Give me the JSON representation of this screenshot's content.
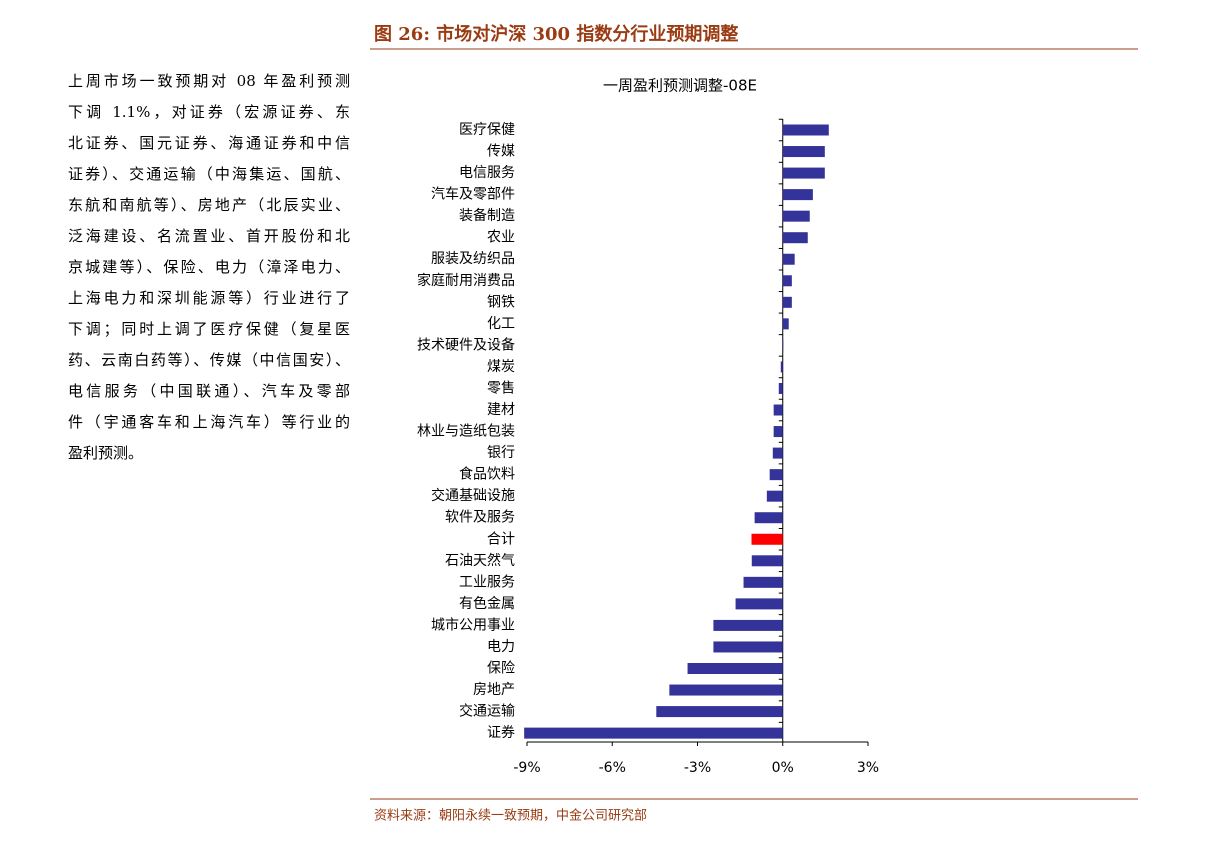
{
  "figure_title": "图 26:  市场对沪深 300 指数分行业预期调整",
  "paragraph": [
    "上周市场一致预期对 08 年盈利预测",
    "下调 1.1%，对证券（宏源证券、东",
    "北证券、国元证券、海通证券和中信",
    "证券）、交通运输（中海集运、国航、",
    "东航和南航等）、房地产（北辰实业、",
    "泛海建设、名流置业、首开股份和北",
    "京城建等）、保险、电力（漳泽电力、",
    "上海电力和深圳能源等）行业进行了",
    "下调；同时上调了医疗保健（复星医",
    "药、云南白药等）、传媒（中信国安）、",
    "电信服务（中国联通）、汽车及零部",
    "件（宇通客车和上海汽车）等行业的",
    "盈利预测。"
  ],
  "chart_data": {
    "type": "hbar",
    "title": "一周盈利预测调整-08E",
    "categories": [
      "医疗保健",
      "传媒",
      "电信服务",
      "汽车及零部件",
      "装备制造",
      "农业",
      "服装及纺织品",
      "家庭耐用消费品",
      "钢铁",
      "化工",
      "技术硬件及设备",
      "煤炭",
      "零售",
      "建材",
      "林业与造纸包装",
      "银行",
      "食品饮料",
      "交通基础设施",
      "软件及服务",
      "合计",
      "石油天然气",
      "工业服务",
      "有色金属",
      "城市公用事业",
      "电力",
      "保险",
      "房地产",
      "交通运输",
      "证券"
    ],
    "values": [
      1.62,
      1.48,
      1.48,
      1.06,
      0.95,
      0.88,
      0.42,
      0.32,
      0.32,
      0.21,
      0.02,
      -0.07,
      -0.14,
      -0.32,
      -0.32,
      -0.35,
      -0.46,
      -0.56,
      -0.99,
      -1.1,
      -1.09,
      -1.38,
      -1.66,
      -2.44,
      -2.44,
      -3.35,
      -3.99,
      -4.45,
      -9.1
    ],
    "colors": [
      "#333399",
      "#333399",
      "#333399",
      "#333399",
      "#333399",
      "#333399",
      "#333399",
      "#333399",
      "#333399",
      "#333399",
      "#333399",
      "#333399",
      "#333399",
      "#333399",
      "#333399",
      "#333399",
      "#333399",
      "#333399",
      "#333399",
      "#ff0000",
      "#333399",
      "#333399",
      "#333399",
      "#333399",
      "#333399",
      "#333399",
      "#333399",
      "#333399",
      "#333399"
    ],
    "xlim": [
      -9,
      3
    ],
    "xticks": [
      {
        "value": -9,
        "label": "-9%"
      },
      {
        "value": -6,
        "label": "-6%"
      },
      {
        "value": -3,
        "label": "-3%"
      },
      {
        "value": 0,
        "label": "0%"
      },
      {
        "value": 3,
        "label": "3%"
      }
    ]
  },
  "source": "资料来源：朝阳永续一致预期，中金公司研究部"
}
